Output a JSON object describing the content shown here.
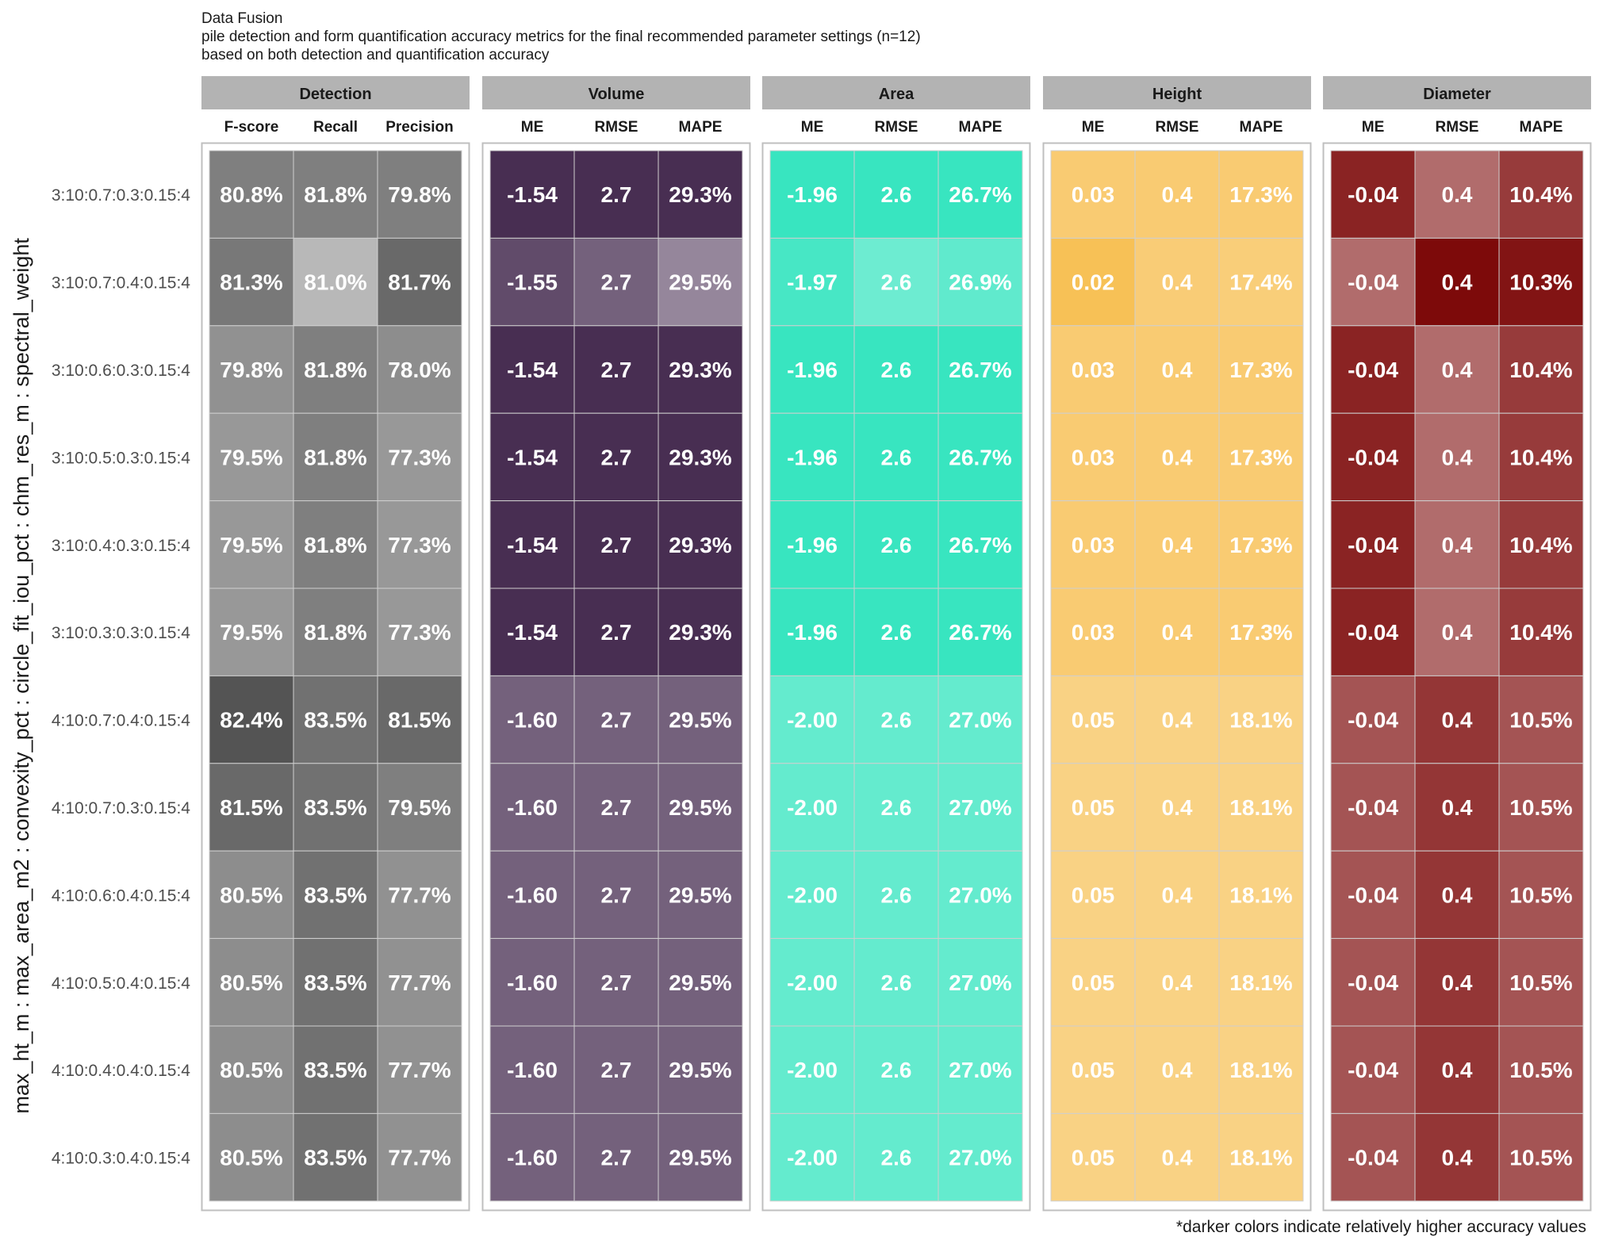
{
  "title": "Data Fusion",
  "subtitle_line1": "pile detection and form quantification accuracy metrics for the final recommended parameter settings (n=12)",
  "subtitle_line2": "based on both detection and quantification accuracy",
  "caption": "*darker colors indicate relatively higher accuracy values",
  "chart_data": {
    "type": "heatmap",
    "ylabel": "max_ht_m : max_area_m2 : convexity_pct : circle_fit_iou_pct : chm_res_m : spectral_weight",
    "rows": [
      "3:10:0.7:0.3:0.15:4",
      "3:10:0.7:0.4:0.15:4",
      "3:10:0.6:0.3:0.15:4",
      "3:10:0.5:0.3:0.15:4",
      "3:10:0.4:0.3:0.15:4",
      "3:10:0.3:0.3:0.15:4",
      "4:10:0.7:0.4:0.15:4",
      "4:10:0.7:0.3:0.15:4",
      "4:10:0.6:0.4:0.15:4",
      "4:10:0.5:0.4:0.15:4",
      "4:10:0.4:0.4:0.15:4",
      "4:10:0.3:0.4:0.15:4"
    ],
    "panels": [
      {
        "name": "Detection",
        "color": "#4d4d4d",
        "columns": [
          "F-score",
          "Recall",
          "Precision"
        ],
        "labels": [
          [
            "80.8%",
            "81.8%",
            "79.8%"
          ],
          [
            "81.3%",
            "81.0%",
            "81.7%"
          ],
          [
            "79.8%",
            "81.8%",
            "78.0%"
          ],
          [
            "79.5%",
            "81.8%",
            "77.3%"
          ],
          [
            "79.5%",
            "81.8%",
            "77.3%"
          ],
          [
            "79.5%",
            "81.8%",
            "77.3%"
          ],
          [
            "82.4%",
            "83.5%",
            "81.5%"
          ],
          [
            "81.5%",
            "83.5%",
            "79.5%"
          ],
          [
            "80.5%",
            "83.5%",
            "77.7%"
          ],
          [
            "80.5%",
            "83.5%",
            "77.7%"
          ],
          [
            "80.5%",
            "83.5%",
            "77.7%"
          ],
          [
            "80.5%",
            "83.5%",
            "77.7%"
          ]
        ],
        "intensity": [
          [
            0.72,
            0.72,
            0.72
          ],
          [
            0.76,
            0.4,
            0.84
          ],
          [
            0.62,
            0.72,
            0.64
          ],
          [
            0.58,
            0.72,
            0.58
          ],
          [
            0.58,
            0.72,
            0.58
          ],
          [
            0.58,
            0.72,
            0.58
          ],
          [
            0.96,
            0.8,
            0.84
          ],
          [
            0.84,
            0.8,
            0.72
          ],
          [
            0.64,
            0.8,
            0.62
          ],
          [
            0.64,
            0.8,
            0.62
          ],
          [
            0.64,
            0.8,
            0.62
          ],
          [
            0.64,
            0.8,
            0.62
          ]
        ]
      },
      {
        "name": "Volume",
        "color": "#3e2349",
        "columns": [
          "ME",
          "RMSE",
          "MAPE"
        ],
        "labels": [
          [
            "-1.54",
            "2.7",
            "29.3%"
          ],
          [
            "-1.55",
            "2.7",
            "29.5%"
          ],
          [
            "-1.54",
            "2.7",
            "29.3%"
          ],
          [
            "-1.54",
            "2.7",
            "29.3%"
          ],
          [
            "-1.54",
            "2.7",
            "29.3%"
          ],
          [
            "-1.54",
            "2.7",
            "29.3%"
          ],
          [
            "-1.60",
            "2.7",
            "29.5%"
          ],
          [
            "-1.60",
            "2.7",
            "29.5%"
          ],
          [
            "-1.60",
            "2.7",
            "29.5%"
          ],
          [
            "-1.60",
            "2.7",
            "29.5%"
          ],
          [
            "-1.60",
            "2.7",
            "29.5%"
          ],
          [
            "-1.60",
            "2.7",
            "29.5%"
          ]
        ],
        "intensity": [
          [
            0.95,
            0.95,
            0.95
          ],
          [
            0.82,
            0.72,
            0.55
          ],
          [
            0.95,
            0.95,
            0.95
          ],
          [
            0.95,
            0.95,
            0.95
          ],
          [
            0.95,
            0.95,
            0.95
          ],
          [
            0.95,
            0.95,
            0.95
          ],
          [
            0.72,
            0.72,
            0.72
          ],
          [
            0.72,
            0.72,
            0.72
          ],
          [
            0.72,
            0.72,
            0.72
          ],
          [
            0.72,
            0.72,
            0.72
          ],
          [
            0.72,
            0.72,
            0.72
          ],
          [
            0.72,
            0.72,
            0.72
          ]
        ]
      },
      {
        "name": "Area",
        "color": "#2ee4bd",
        "columns": [
          "ME",
          "RMSE",
          "MAPE"
        ],
        "labels": [
          [
            "-1.96",
            "2.6",
            "26.7%"
          ],
          [
            "-1.97",
            "2.6",
            "26.9%"
          ],
          [
            "-1.96",
            "2.6",
            "26.7%"
          ],
          [
            "-1.96",
            "2.6",
            "26.7%"
          ],
          [
            "-1.96",
            "2.6",
            "26.7%"
          ],
          [
            "-1.96",
            "2.6",
            "26.7%"
          ],
          [
            "-2.00",
            "2.6",
            "27.0%"
          ],
          [
            "-2.00",
            "2.6",
            "27.0%"
          ],
          [
            "-2.00",
            "2.6",
            "27.0%"
          ],
          [
            "-2.00",
            "2.6",
            "27.0%"
          ],
          [
            "-2.00",
            "2.6",
            "27.0%"
          ],
          [
            "-2.00",
            "2.6",
            "27.0%"
          ]
        ],
        "intensity": [
          [
            0.95,
            0.95,
            0.95
          ],
          [
            0.88,
            0.7,
            0.76
          ],
          [
            0.95,
            0.95,
            0.95
          ],
          [
            0.95,
            0.95,
            0.95
          ],
          [
            0.95,
            0.95,
            0.95
          ],
          [
            0.95,
            0.95,
            0.95
          ],
          [
            0.74,
            0.74,
            0.74
          ],
          [
            0.74,
            0.74,
            0.74
          ],
          [
            0.74,
            0.74,
            0.74
          ],
          [
            0.74,
            0.74,
            0.74
          ],
          [
            0.74,
            0.74,
            0.74
          ],
          [
            0.74,
            0.74,
            0.74
          ]
        ]
      },
      {
        "name": "Height",
        "color": "#f7be4f",
        "columns": [
          "ME",
          "RMSE",
          "MAPE"
        ],
        "labels": [
          [
            "0.03",
            "0.4",
            "17.3%"
          ],
          [
            "0.02",
            "0.4",
            "17.4%"
          ],
          [
            "0.03",
            "0.4",
            "17.3%"
          ],
          [
            "0.03",
            "0.4",
            "17.3%"
          ],
          [
            "0.03",
            "0.4",
            "17.3%"
          ],
          [
            "0.03",
            "0.4",
            "17.3%"
          ],
          [
            "0.05",
            "0.4",
            "18.1%"
          ],
          [
            "0.05",
            "0.4",
            "18.1%"
          ],
          [
            "0.05",
            "0.4",
            "18.1%"
          ],
          [
            "0.05",
            "0.4",
            "18.1%"
          ],
          [
            "0.05",
            "0.4",
            "18.1%"
          ],
          [
            "0.05",
            "0.4",
            "18.1%"
          ]
        ],
        "intensity": [
          [
            0.8,
            0.8,
            0.8
          ],
          [
            0.96,
            0.78,
            0.76
          ],
          [
            0.8,
            0.8,
            0.8
          ],
          [
            0.8,
            0.8,
            0.8
          ],
          [
            0.8,
            0.8,
            0.8
          ],
          [
            0.8,
            0.8,
            0.8
          ],
          [
            0.7,
            0.7,
            0.7
          ],
          [
            0.7,
            0.7,
            0.7
          ],
          [
            0.7,
            0.7,
            0.7
          ],
          [
            0.7,
            0.7,
            0.7
          ],
          [
            0.7,
            0.7,
            0.7
          ],
          [
            0.7,
            0.7,
            0.7
          ]
        ]
      },
      {
        "name": "Diameter",
        "color": "#7d0a0a",
        "columns": [
          "ME",
          "RMSE",
          "MAPE"
        ],
        "labels": [
          [
            "-0.04",
            "0.4",
            "10.4%"
          ],
          [
            "-0.04",
            "0.4",
            "10.3%"
          ],
          [
            "-0.04",
            "0.4",
            "10.4%"
          ],
          [
            "-0.04",
            "0.4",
            "10.4%"
          ],
          [
            "-0.04",
            "0.4",
            "10.4%"
          ],
          [
            "-0.04",
            "0.4",
            "10.4%"
          ],
          [
            "-0.04",
            "0.4",
            "10.5%"
          ],
          [
            "-0.04",
            "0.4",
            "10.5%"
          ],
          [
            "-0.04",
            "0.4",
            "10.5%"
          ],
          [
            "-0.04",
            "0.4",
            "10.5%"
          ],
          [
            "-0.04",
            "0.4",
            "10.5%"
          ],
          [
            "-0.04",
            "0.4",
            "10.5%"
          ]
        ],
        "intensity": [
          [
            0.9,
            0.6,
            0.8
          ],
          [
            0.6,
            1.0,
            0.96
          ],
          [
            0.9,
            0.6,
            0.8
          ],
          [
            0.9,
            0.6,
            0.8
          ],
          [
            0.9,
            0.6,
            0.8
          ],
          [
            0.9,
            0.6,
            0.8
          ],
          [
            0.7,
            0.82,
            0.7
          ],
          [
            0.7,
            0.82,
            0.7
          ],
          [
            0.7,
            0.82,
            0.7
          ],
          [
            0.7,
            0.82,
            0.7
          ],
          [
            0.7,
            0.82,
            0.7
          ],
          [
            0.7,
            0.82,
            0.7
          ]
        ]
      }
    ]
  }
}
